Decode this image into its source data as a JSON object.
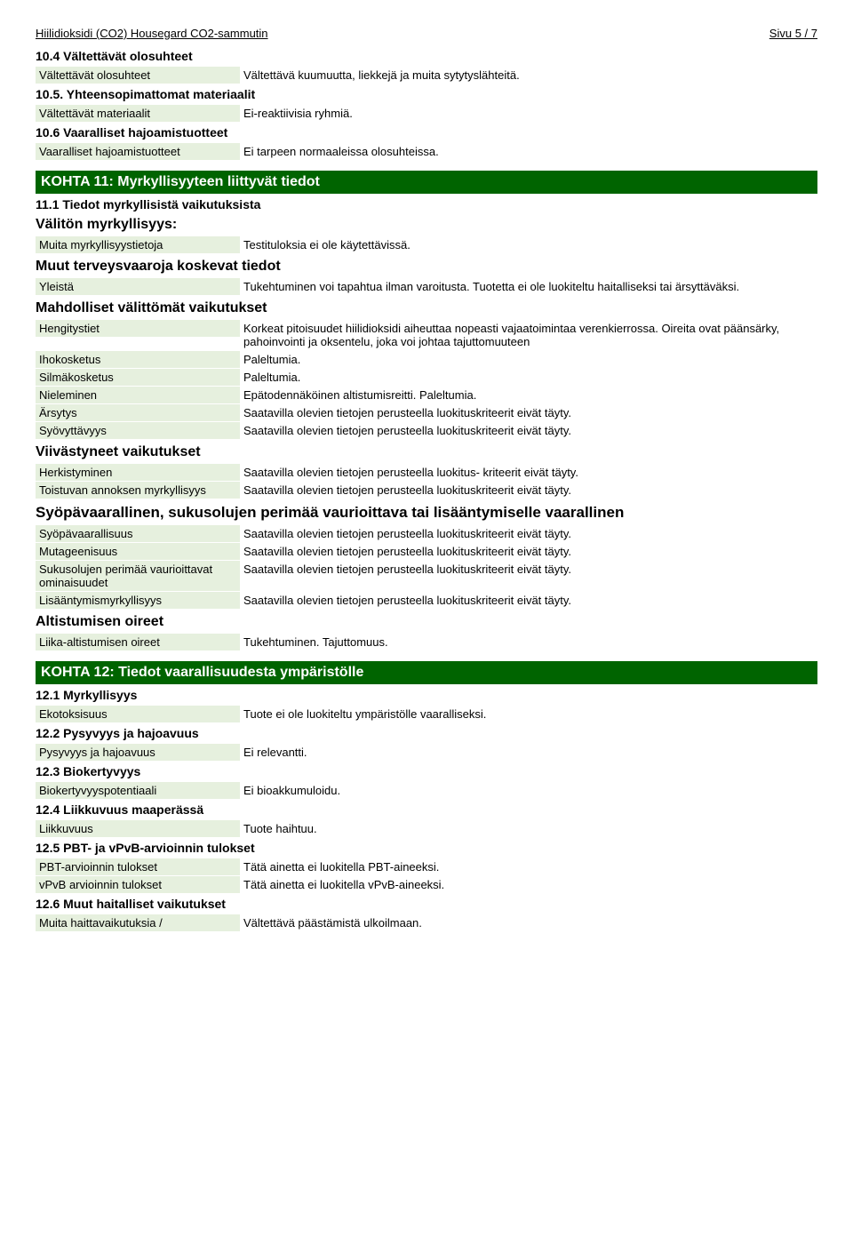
{
  "header": {
    "title": "Hiilidioksidi (CO2) Housegard CO2-sammutin",
    "page": "Sivu 5 / 7"
  },
  "sections": [
    {
      "num": "10.4 Vältettävät olosuhteet",
      "rows": [
        {
          "label": "Vältettävät olosuhteet",
          "value": "Vältettävä kuumuutta, liekkejä ja muita sytytyslähteitä."
        }
      ]
    },
    {
      "num": "10.5. Yhteensopimattomat materiaalit",
      "rows": [
        {
          "label": "Vältettävät materiaalit",
          "value": "Ei-reaktiivisia ryhmiä."
        }
      ]
    },
    {
      "num": "10.6 Vaaralliset hajoamistuotteet",
      "rows": [
        {
          "label": "Vaaralliset hajoamistuotteet",
          "value": "Ei tarpeen normaaleissa olosuhteissa."
        }
      ]
    }
  ],
  "kohta11": {
    "title": "KOHTA 11: Myrkyllisyyteen liittyvät tiedot",
    "s11_1": "11.1 Tiedot myrkyllisistä vaikutuksista",
    "valiton": "Välitön myrkyllisyys:",
    "rows1": [
      {
        "label": "Muita myrkyllisyystietoja",
        "value": "Testituloksia ei ole käytettävissä."
      }
    ],
    "muut": "Muut terveysvaaroja koskevat tiedot",
    "rows2": [
      {
        "label": "Yleistä",
        "value": "Tukehtuminen voi tapahtua ilman varoitusta. Tuotetta ei ole luokiteltu haitalliseksi tai ärsyttäväksi."
      }
    ],
    "mahdolliset": "Mahdolliset välittömät vaikutukset",
    "rows3": [
      {
        "label": "Hengitystiet",
        "value": "Korkeat pitoisuudet hiilidioksidi aiheuttaa nopeasti vajaatoimintaa verenkierrossa. Oireita ovat päänsärky, pahoinvointi ja oksentelu, joka voi johtaa tajuttomuuteen"
      },
      {
        "label": "Ihokosketus",
        "value": "Paleltumia."
      },
      {
        "label": "Silmäkosketus",
        "value": "Paleltumia."
      },
      {
        "label": "Nieleminen",
        "value": "Epätodennäköinen altistumisreitti. Paleltumia."
      },
      {
        "label": "Ärsytys",
        "value": "Saatavilla olevien tietojen perusteella luokituskriteerit eivät täyty."
      },
      {
        "label": "Syövyttävyys",
        "value": "Saatavilla olevien tietojen perusteella luokituskriteerit eivät täyty."
      }
    ],
    "viivastyneet": "Viivästyneet vaikutukset",
    "rows4": [
      {
        "label": "Herkistyminen",
        "value": "Saatavilla olevien tietojen perusteella luokitus- kriteerit eivät täyty."
      },
      {
        "label": "Toistuvan annoksen myrkyllisyys",
        "value": "Saatavilla olevien tietojen perusteella luokituskriteerit eivät täyty."
      }
    ],
    "syopa": "Syöpävaarallinen, sukusolujen perimää vaurioittava tai lisääntymiselle vaarallinen",
    "rows5": [
      {
        "label": "Syöpävaarallisuus",
        "value": "Saatavilla olevien tietojen perusteella luokituskriteerit eivät täyty."
      },
      {
        "label": "Mutageenisuus",
        "value": "Saatavilla olevien tietojen perusteella luokituskriteerit eivät täyty."
      },
      {
        "label": "Sukusolujen perimää vaurioittavat ominaisuudet",
        "value": "Saatavilla olevien tietojen perusteella luokituskriteerit eivät täyty."
      },
      {
        "label": "Lisääntymismyrkyllisyys",
        "value": "Saatavilla olevien tietojen perusteella luokituskriteerit eivät täyty."
      }
    ],
    "altistumisen": "Altistumisen oireet",
    "rows6": [
      {
        "label": "Liika-altistumisen oireet",
        "value": "Tukehtuminen. Tajuttomuus."
      }
    ]
  },
  "kohta12": {
    "title": "KOHTA 12: Tiedot vaarallisuudesta ympäristölle",
    "subs": [
      {
        "num": "12.1 Myrkyllisyys",
        "rows": [
          {
            "label": "Ekotoksisuus",
            "value": "Tuote ei ole luokiteltu ympäristölle vaaralliseksi."
          }
        ]
      },
      {
        "num": "12.2 Pysyvyys ja hajoavuus",
        "rows": [
          {
            "label": "Pysyvyys ja hajoavuus",
            "value": "Ei relevantti."
          }
        ]
      },
      {
        "num": "12.3 Biokertyvyys",
        "rows": [
          {
            "label": "Biokertyvyyspotentiaali",
            "value": "Ei bioakkumuloidu."
          }
        ]
      },
      {
        "num": "12.4 Liikkuvuus maaperässä",
        "rows": [
          {
            "label": "Liikkuvuus",
            "value": "Tuote haihtuu."
          }
        ]
      },
      {
        "num": "12.5 PBT- ja vPvB-arvioinnin tulokset",
        "rows": [
          {
            "label": "PBT-arvioinnin tulokset",
            "value": "Tätä ainetta ei luokitella PBT-aineeksi."
          },
          {
            "label": "vPvB arvioinnin tulokset",
            "value": "Tätä ainetta ei luokitella vPvB-aineeksi."
          }
        ]
      },
      {
        "num": "12.6 Muut haitalliset vaikutukset",
        "rows": [
          {
            "label": "Muita haittavaikutuksia /",
            "value": "Vältettävä päästämistä ulkoilmaan."
          }
        ]
      }
    ]
  }
}
